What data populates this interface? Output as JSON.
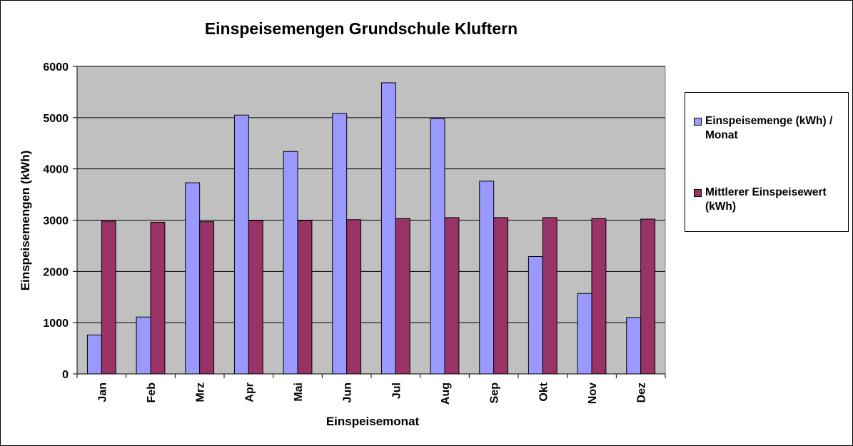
{
  "chart_data": {
    "type": "bar",
    "title": "Einspeisemengen Grundschule Kluftern",
    "xlabel": "Einspeisemonat",
    "ylabel": "Einspeisemengen (kWh)",
    "ylim": [
      0,
      6000
    ],
    "yticks": [
      0,
      1000,
      2000,
      3000,
      4000,
      5000,
      6000
    ],
    "grid": true,
    "legend_position": "right",
    "categories": [
      "Jan",
      "Feb",
      "Mrz",
      "Apr",
      "Mai",
      "Jun",
      "Jul",
      "Aug",
      "Sep",
      "Okt",
      "Nov",
      "Dez"
    ],
    "series": [
      {
        "name": "Einspeisemenge (kWh) / Monat",
        "color": "#9999ff",
        "values": [
          760,
          1110,
          3730,
          5050,
          4340,
          5080,
          5680,
          4980,
          3760,
          2290,
          1570,
          1100
        ]
      },
      {
        "name": "Mittlerer Einspeisewert (kWh)",
        "color": "#993366",
        "values": [
          2980,
          2960,
          2970,
          2990,
          2990,
          3010,
          3030,
          3050,
          3050,
          3050,
          3030,
          3020
        ]
      }
    ],
    "plot_background": "#c0c0c0"
  }
}
